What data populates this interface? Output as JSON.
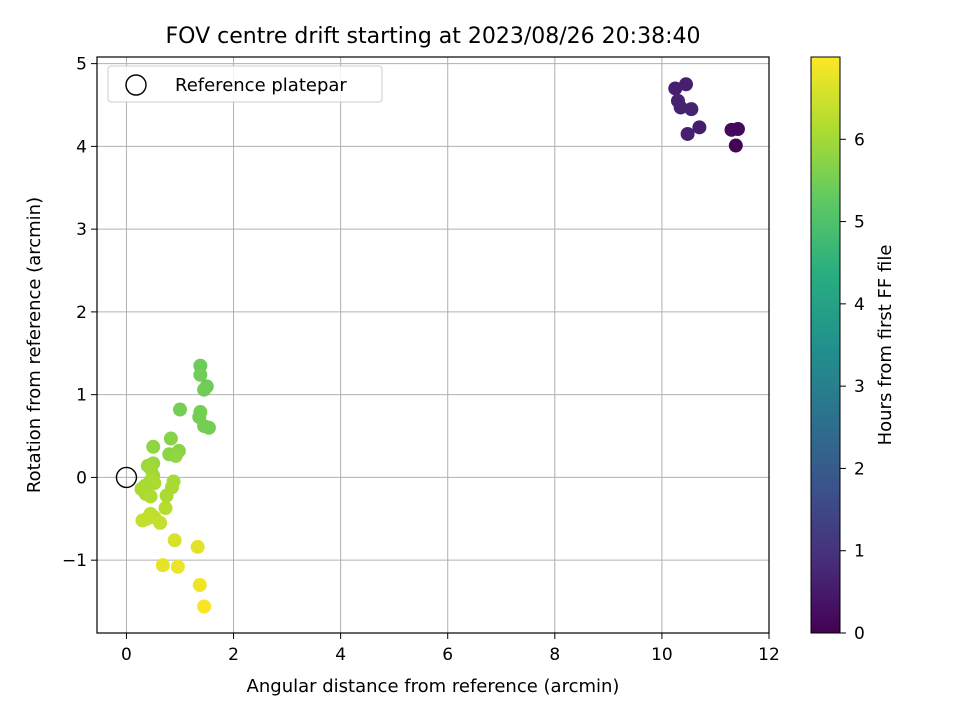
{
  "chart_data": {
    "type": "scatter",
    "title": "FOV centre drift starting at 2023/08/26 20:38:40",
    "xlabel": "Angular distance from reference (arcmin)",
    "ylabel": "Rotation from reference (arcmin)",
    "xlim": [
      -0.55,
      12
    ],
    "ylim": [
      -1.88,
      5.08
    ],
    "x_ticks": [
      0,
      2,
      4,
      6,
      8,
      10,
      12
    ],
    "y_ticks": [
      -1,
      0,
      1,
      2,
      3,
      4,
      5
    ],
    "grid": true,
    "legend": {
      "placement": "upper-left",
      "entries": [
        "Reference platepar"
      ]
    },
    "reference_point": {
      "x": 0,
      "y": 0,
      "label": "Reference platepar"
    },
    "colorbar": {
      "label": "Hours from first FF file",
      "colormap": "viridis",
      "range": [
        0,
        7.0
      ],
      "ticks": [
        0,
        1,
        2,
        3,
        4,
        5,
        6
      ]
    },
    "points": [
      {
        "x": 10.25,
        "y": 4.7,
        "t": 0.6
      },
      {
        "x": 10.45,
        "y": 4.75,
        "t": 0.6
      },
      {
        "x": 10.3,
        "y": 4.55,
        "t": 0.65
      },
      {
        "x": 10.35,
        "y": 4.47,
        "t": 0.65
      },
      {
        "x": 10.55,
        "y": 4.45,
        "t": 0.65
      },
      {
        "x": 10.7,
        "y": 4.23,
        "t": 0.55
      },
      {
        "x": 10.48,
        "y": 4.15,
        "t": 0.6
      },
      {
        "x": 11.3,
        "y": 4.2,
        "t": 0.2
      },
      {
        "x": 11.42,
        "y": 4.21,
        "t": 0.15
      },
      {
        "x": 11.38,
        "y": 4.01,
        "t": 0.05
      },
      {
        "x": 1.38,
        "y": 1.35,
        "t": 5.4
      },
      {
        "x": 1.38,
        "y": 1.24,
        "t": 5.45
      },
      {
        "x": 1.5,
        "y": 1.1,
        "t": 5.4
      },
      {
        "x": 1.45,
        "y": 1.06,
        "t": 5.45
      },
      {
        "x": 1.0,
        "y": 0.82,
        "t": 5.5
      },
      {
        "x": 1.38,
        "y": 0.79,
        "t": 5.5
      },
      {
        "x": 1.36,
        "y": 0.73,
        "t": 5.5
      },
      {
        "x": 1.45,
        "y": 0.62,
        "t": 5.5
      },
      {
        "x": 1.54,
        "y": 0.6,
        "t": 5.5
      },
      {
        "x": 0.83,
        "y": 0.47,
        "t": 5.7
      },
      {
        "x": 0.5,
        "y": 0.37,
        "t": 5.8
      },
      {
        "x": 0.98,
        "y": 0.32,
        "t": 5.75
      },
      {
        "x": 0.8,
        "y": 0.28,
        "t": 5.75
      },
      {
        "x": 0.92,
        "y": 0.26,
        "t": 5.8
      },
      {
        "x": 0.5,
        "y": 0.17,
        "t": 5.9
      },
      {
        "x": 0.4,
        "y": 0.14,
        "t": 5.95
      },
      {
        "x": 0.46,
        "y": 0.1,
        "t": 6.0
      },
      {
        "x": 0.5,
        "y": 0.02,
        "t": 6.0
      },
      {
        "x": 0.45,
        "y": -0.04,
        "t": 6.1
      },
      {
        "x": 0.52,
        "y": -0.07,
        "t": 6.1
      },
      {
        "x": 0.35,
        "y": -0.1,
        "t": 6.05
      },
      {
        "x": 0.28,
        "y": -0.14,
        "t": 6.1
      },
      {
        "x": 0.36,
        "y": -0.2,
        "t": 6.1
      },
      {
        "x": 0.45,
        "y": -0.23,
        "t": 6.15
      },
      {
        "x": 0.88,
        "y": -0.05,
        "t": 6.05
      },
      {
        "x": 0.85,
        "y": -0.12,
        "t": 6.1
      },
      {
        "x": 0.75,
        "y": -0.22,
        "t": 6.1
      },
      {
        "x": 0.73,
        "y": -0.37,
        "t": 6.2
      },
      {
        "x": 0.45,
        "y": -0.44,
        "t": 6.3
      },
      {
        "x": 0.52,
        "y": -0.48,
        "t": 6.3
      },
      {
        "x": 0.38,
        "y": -0.5,
        "t": 6.35
      },
      {
        "x": 0.3,
        "y": -0.52,
        "t": 6.35
      },
      {
        "x": 0.63,
        "y": -0.55,
        "t": 6.4
      },
      {
        "x": 0.9,
        "y": -0.76,
        "t": 6.6
      },
      {
        "x": 1.33,
        "y": -0.84,
        "t": 6.7
      },
      {
        "x": 0.68,
        "y": -1.06,
        "t": 6.75
      },
      {
        "x": 0.96,
        "y": -1.08,
        "t": 6.8
      },
      {
        "x": 1.37,
        "y": -1.3,
        "t": 6.85
      },
      {
        "x": 1.45,
        "y": -1.56,
        "t": 6.95
      }
    ]
  }
}
